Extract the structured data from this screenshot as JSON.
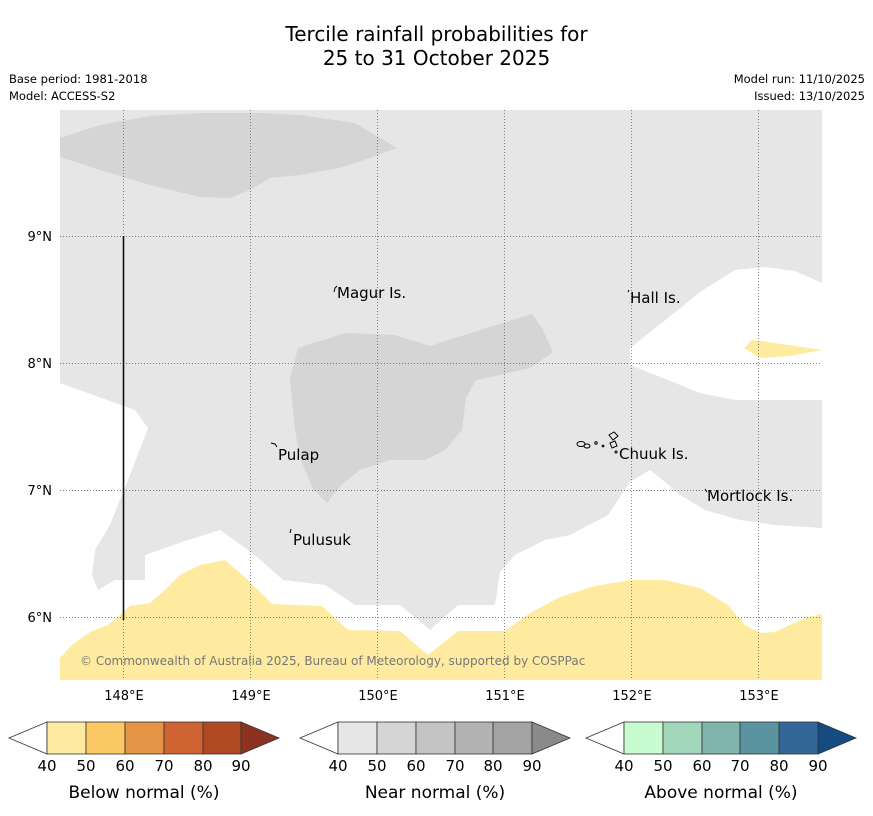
{
  "header": {
    "title_line1": "Tercile rainfall probabilities for",
    "title_line2": "25 to 31 October 2025",
    "base_period": "Base period: 1981-2018",
    "model": "Model: ACCESS-S2",
    "model_run": "Model run: 11/10/2025",
    "issued": "Issued: 13/10/2025"
  },
  "map": {
    "lon_range": [
      147.5,
      153.5
    ],
    "lat_range": [
      5.5,
      10.0
    ],
    "lon_ticks": [
      148,
      149,
      150,
      151,
      152,
      153
    ],
    "lon_tick_labels": [
      "148°E",
      "149°E",
      "150°E",
      "151°E",
      "152°E",
      "153°E"
    ],
    "lat_ticks": [
      6,
      7,
      8,
      9
    ],
    "lat_tick_labels": [
      "6°N",
      "7°N",
      "8°N",
      "9°N"
    ],
    "islands": [
      {
        "name": "Magur Is.",
        "lon": 149.67,
        "lat": 8.57
      },
      {
        "name": "Hall Is.",
        "lon": 152.0,
        "lat": 8.53
      },
      {
        "name": "Pulap",
        "lon": 149.2,
        "lat": 7.35
      },
      {
        "name": "Chuuk Is.",
        "lon": 151.85,
        "lat": 7.35
      },
      {
        "name": "Mortlock Is.",
        "lon": 152.6,
        "lat": 7.0
      },
      {
        "name": "Pulusuk",
        "lon": 149.3,
        "lat": 6.68
      }
    ],
    "attribution": "© Commonwealth of Australia 2025, Bureau of Meteorology, supported by COSPPac",
    "colors": {
      "near_40": "#e6e6e6",
      "near_50": "#d5d5d5",
      "below_40": "#ffeb9f",
      "ocean": "#ffffff",
      "grid": "#555555"
    }
  },
  "legends": [
    {
      "title": "Below normal (%)",
      "ticks": [
        "40",
        "50",
        "60",
        "70",
        "80",
        "90"
      ],
      "colors": [
        "#ffeb9f",
        "#fdc965",
        "#e39444",
        "#cf6432",
        "#b04a25",
        "#8b3320"
      ]
    },
    {
      "title": "Near normal (%)",
      "ticks": [
        "40",
        "50",
        "60",
        "70",
        "80",
        "90"
      ],
      "colors": [
        "#e6e6e6",
        "#d5d5d5",
        "#c4c4c4",
        "#b3b3b3",
        "#a3a3a3",
        "#8a8a8a"
      ]
    },
    {
      "title": "Above normal (%)",
      "ticks": [
        "40",
        "50",
        "60",
        "70",
        "80",
        "90"
      ],
      "colors": [
        "#c8fbd0",
        "#a3d7bb",
        "#80b5ae",
        "#5b93a1",
        "#336799",
        "#144c82"
      ]
    }
  ]
}
